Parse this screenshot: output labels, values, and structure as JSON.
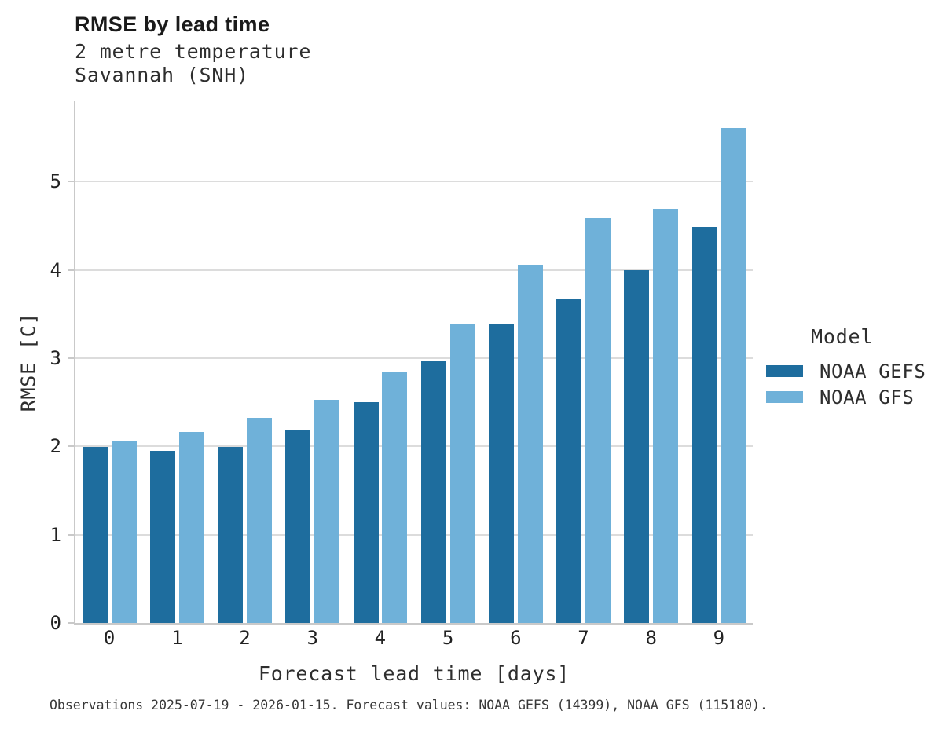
{
  "header": {
    "title": "RMSE by lead time",
    "subtitle_line1": "2 metre temperature",
    "subtitle_line2": "Savannah (SNH)"
  },
  "footer": {
    "text": "Observations 2025-07-19 - 2026-01-15. Forecast values: NOAA GEFS (14399), NOAA GFS (115180)."
  },
  "colors": {
    "gefs_dark_blue": "#1e6d9e",
    "gfs_light_blue": "#6fb1d9",
    "gridline": "#dcdcdc",
    "axis_line": "#c9c9c9"
  },
  "chart_data": {
    "type": "bar",
    "title": "RMSE by lead time",
    "subtitle": "2 metre temperature, Savannah (SNH)",
    "xlabel": "Forecast lead time [days]",
    "ylabel": "RMSE [C]",
    "legend_title": "Model",
    "legend_position": "right",
    "grid": true,
    "categories": [
      "0",
      "1",
      "2",
      "3",
      "4",
      "5",
      "6",
      "7",
      "8",
      "9"
    ],
    "series": [
      {
        "name": "NOAA GEFS",
        "color": "#1e6d9e",
        "values": [
          1.99,
          1.95,
          1.99,
          2.18,
          2.5,
          2.97,
          3.38,
          3.68,
          4.0,
          4.49
        ]
      },
      {
        "name": "NOAA GFS",
        "color": "#6fb1d9",
        "values": [
          2.06,
          2.16,
          2.32,
          2.53,
          2.85,
          3.38,
          4.06,
          4.59,
          4.69,
          5.61
        ]
      }
    ],
    "yticks": [
      0,
      1,
      2,
      3,
      4,
      5
    ],
    "ylim": [
      0,
      5.91
    ]
  }
}
